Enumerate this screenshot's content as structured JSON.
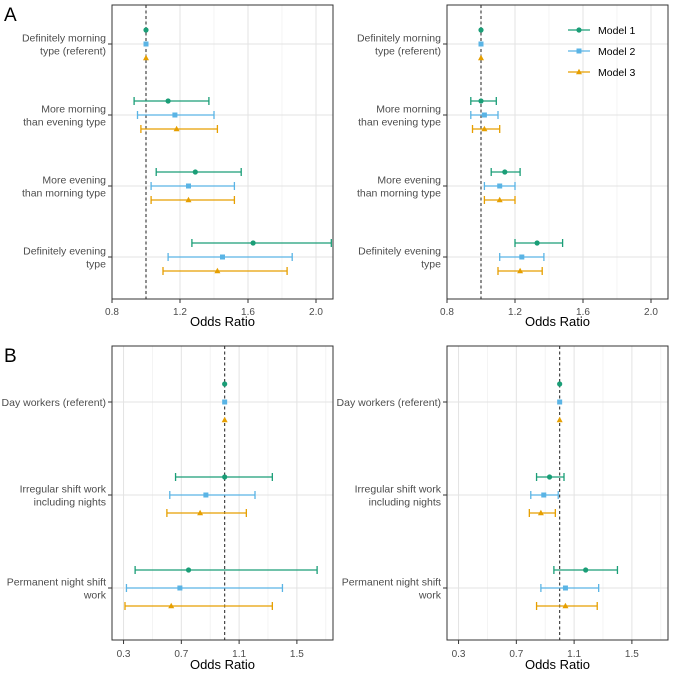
{
  "panel_labels": [
    "A",
    "B"
  ],
  "colors": {
    "Model 1": "#1a9e77",
    "Model 2": "#5ab4e5",
    "Model 3": "#e69f00"
  },
  "chart_data": [
    {
      "type": "forest",
      "panel": "A",
      "xlabel": "Odds Ratio",
      "xlim": [
        0.8,
        2.1
      ],
      "xticks": [
        "0.8",
        "1.2",
        "1.6",
        "2.0"
      ],
      "reference_line": 1.0,
      "grid": true,
      "legend": "none",
      "categories": [
        "Definitely morning type (referent)",
        "More morning than evening type",
        "More evening than morning type",
        "Definitely evening type"
      ],
      "category_lines": [
        [
          "Definitely morning",
          "type (referent)"
        ],
        [
          "More morning",
          "than evening type"
        ],
        [
          "More evening",
          "than morning type"
        ],
        [
          "Definitely evening",
          "type"
        ]
      ],
      "series": [
        {
          "name": "Model 1",
          "marker": "circle",
          "estimates": [
            1.0,
            1.13,
            1.29,
            1.63
          ],
          "lower": [
            1.0,
            0.93,
            1.06,
            1.27
          ],
          "upper": [
            1.0,
            1.37,
            1.56,
            2.09
          ]
        },
        {
          "name": "Model 2",
          "marker": "square",
          "estimates": [
            1.0,
            1.17,
            1.25,
            1.45
          ],
          "lower": [
            1.0,
            0.95,
            1.03,
            1.13
          ],
          "upper": [
            1.0,
            1.4,
            1.52,
            1.86
          ]
        },
        {
          "name": "Model 3",
          "marker": "triangle",
          "estimates": [
            1.0,
            1.18,
            1.25,
            1.42
          ],
          "lower": [
            1.0,
            0.97,
            1.03,
            1.1
          ],
          "upper": [
            1.0,
            1.42,
            1.52,
            1.83
          ]
        }
      ]
    },
    {
      "type": "forest",
      "panel": "A",
      "xlabel": "Odds Ratio",
      "xlim": [
        0.8,
        2.1
      ],
      "xticks": [
        "0.8",
        "1.2",
        "1.6",
        "2.0"
      ],
      "reference_line": 1.0,
      "grid": true,
      "legend": "top-right",
      "categories": [
        "Definitely morning type (referent)",
        "More morning than evening type",
        "More evening than morning type",
        "Definitely evening type"
      ],
      "category_lines": [
        [
          "Definitely morning",
          "type (referent)"
        ],
        [
          "More morning",
          "than evening type"
        ],
        [
          "More evening",
          "than morning type"
        ],
        [
          "Definitely evening",
          "type"
        ]
      ],
      "series": [
        {
          "name": "Model 1",
          "marker": "circle",
          "estimates": [
            1.0,
            1.0,
            1.14,
            1.33
          ],
          "lower": [
            1.0,
            0.94,
            1.06,
            1.2
          ],
          "upper": [
            1.0,
            1.09,
            1.23,
            1.48
          ]
        },
        {
          "name": "Model 2",
          "marker": "square",
          "estimates": [
            1.0,
            1.02,
            1.11,
            1.24
          ],
          "lower": [
            1.0,
            0.94,
            1.02,
            1.11
          ],
          "upper": [
            1.0,
            1.1,
            1.2,
            1.37
          ]
        },
        {
          "name": "Model 3",
          "marker": "triangle",
          "estimates": [
            1.0,
            1.02,
            1.11,
            1.23
          ],
          "lower": [
            1.0,
            0.95,
            1.02,
            1.1
          ],
          "upper": [
            1.0,
            1.11,
            1.2,
            1.36
          ]
        }
      ]
    },
    {
      "type": "forest",
      "panel": "B",
      "xlabel": "Odds Ratio",
      "xlim": [
        0.22,
        1.75
      ],
      "xticks": [
        "0.3",
        "0.7",
        "1.1",
        "1.5"
      ],
      "reference_line": 1.0,
      "grid": true,
      "legend": "none",
      "categories": [
        "Day workers (referent)",
        "Irregular shift work including nights",
        "Permanent night shift work"
      ],
      "category_lines": [
        [
          "Day workers (referent)"
        ],
        [
          "Irregular shift work",
          "including nights"
        ],
        [
          "Permanent night shift",
          "work"
        ]
      ],
      "series": [
        {
          "name": "Model 1",
          "marker": "circle",
          "estimates": [
            1.0,
            1.0,
            0.75
          ],
          "lower": [
            1.0,
            0.66,
            0.38
          ],
          "upper": [
            1.0,
            1.33,
            1.64
          ]
        },
        {
          "name": "Model 2",
          "marker": "square",
          "estimates": [
            1.0,
            0.87,
            0.69
          ],
          "lower": [
            1.0,
            0.62,
            0.32
          ],
          "upper": [
            1.0,
            1.21,
            1.4
          ]
        },
        {
          "name": "Model 3",
          "marker": "triangle",
          "estimates": [
            1.0,
            0.83,
            0.63
          ],
          "lower": [
            1.0,
            0.6,
            0.31
          ],
          "upper": [
            1.0,
            1.15,
            1.33
          ]
        }
      ]
    },
    {
      "type": "forest",
      "panel": "B",
      "xlabel": "Odds Ratio",
      "xlim": [
        0.22,
        1.75
      ],
      "xticks": [
        "0.3",
        "0.7",
        "1.1",
        "1.5"
      ],
      "reference_line": 1.0,
      "grid": true,
      "legend": "none",
      "categories": [
        "Day workers (referent)",
        "Irregular shift work including nights",
        "Permanent night shift work"
      ],
      "category_lines": [
        [
          "Day workers (referent)"
        ],
        [
          "Irregular shift work",
          "including nights"
        ],
        [
          "Permanent night shift",
          "work"
        ]
      ],
      "series": [
        {
          "name": "Model 1",
          "marker": "circle",
          "estimates": [
            1.0,
            0.93,
            1.18
          ],
          "lower": [
            1.0,
            0.84,
            0.96
          ],
          "upper": [
            1.0,
            1.03,
            1.4
          ]
        },
        {
          "name": "Model 2",
          "marker": "square",
          "estimates": [
            1.0,
            0.89,
            1.04
          ],
          "lower": [
            1.0,
            0.8,
            0.87
          ],
          "upper": [
            1.0,
            0.99,
            1.27
          ]
        },
        {
          "name": "Model 3",
          "marker": "triangle",
          "estimates": [
            1.0,
            0.87,
            1.04
          ],
          "lower": [
            1.0,
            0.79,
            0.84
          ],
          "upper": [
            1.0,
            0.97,
            1.26
          ]
        }
      ]
    }
  ]
}
